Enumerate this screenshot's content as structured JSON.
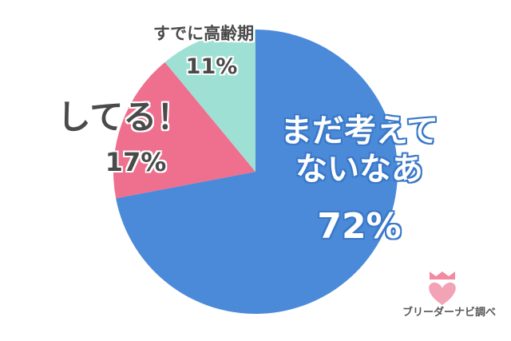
{
  "chart_data": {
    "type": "pie",
    "categories": [
      "まだ考えてないなあ",
      "してる！",
      "すでに高齢期"
    ],
    "values": [
      72,
      17,
      11
    ],
    "value_labels": [
      "72%",
      "17%",
      "11%"
    ],
    "colors": [
      "#4a8ad9",
      "#ef6f8e",
      "#9ee0d4"
    ],
    "source": "ブリーダーナビ調べ"
  }
}
